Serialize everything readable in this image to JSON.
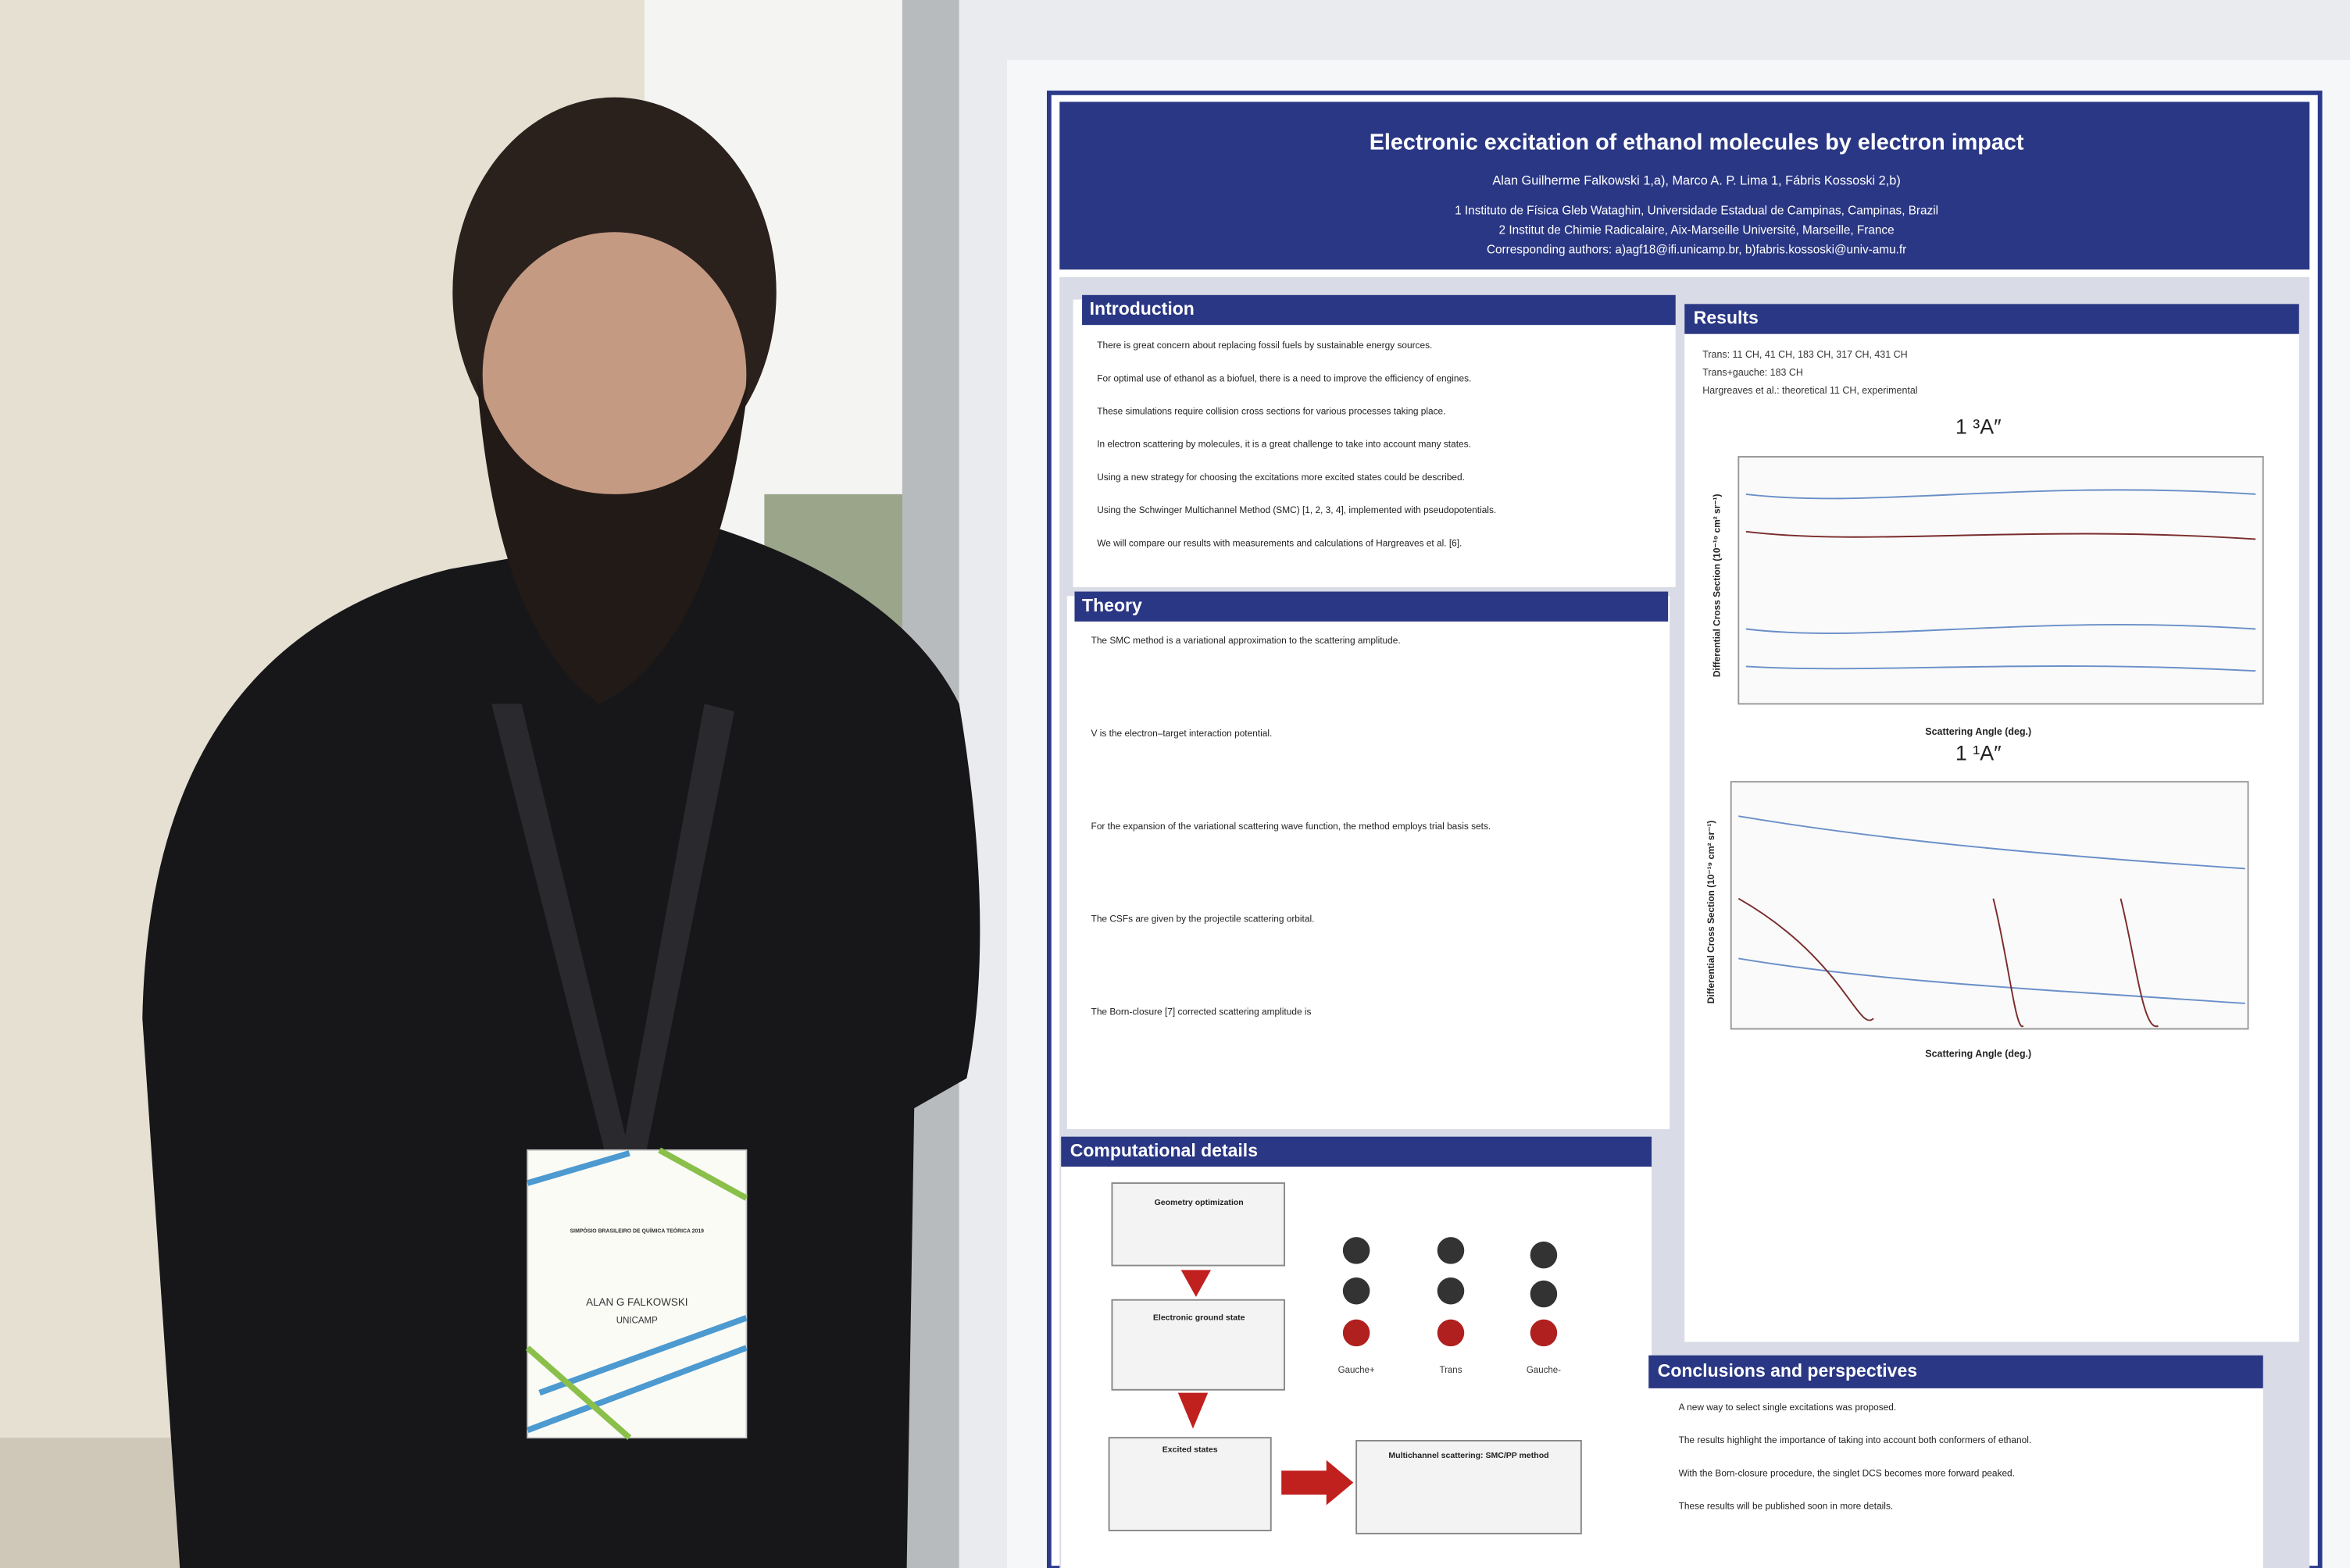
{
  "poster": {
    "title": "Electronic excitation of ethanol molecules by electron impact",
    "authors": "Alan Guilherme Falkowski 1,a), Marco A. P. Lima 1, Fábris Kossoski 2,b)",
    "affiliations": [
      "1 Instituto de Física Gleb Wataghin, Universidade Estadual de Campinas, Campinas, Brazil",
      "2 Institut de Chimie Radicalaire, Aix-Marseille Université, Marseille, France",
      "Corresponding authors: a)agf18@ifi.unicamp.br, b)fabris.kossoski@univ-amu.fr"
    ],
    "sections": {
      "introduction": "Introduction",
      "theory": "Theory",
      "computational": "Computational details",
      "results": "Results",
      "conclusions": "Conclusions and perspectives"
    },
    "intro_bullets": [
      "There is great concern about replacing fossil fuels by sustainable energy sources.",
      "For optimal use of ethanol as a biofuel, there is a need to improve the efficiency of engines.",
      "These simulations require collision cross sections for various processes taking place.",
      "In electron scattering by molecules, it is a great challenge to take into account many states.",
      "Using a new strategy for choosing the excitations more excited states could be described.",
      "Using the Schwinger Multichannel Method (SMC) [1, 2, 3, 4], implemented with pseudopotentials.",
      "We will compare our results with measurements and calculations of Hargreaves et al. [6]."
    ],
    "theory_bullets": [
      "The SMC method is a variational approximation to the scattering amplitude.",
      "V is the electron–target interaction potential.",
      "For the expansion of the variational scattering wave function, the method employs trial basis sets.",
      "The CSFs are given by the projectile scattering orbital.",
      "The Born-closure [7] corrected scattering amplitude is"
    ],
    "results_legend": [
      "Trans:  11 CH,  41 CH,  183 CH,  317 CH,  431 CH",
      "Trans+gauche:  183 CH",
      "Hargreaves et al.:  theoretical 11 CH,  experimental"
    ],
    "plots": [
      {
        "title": "1 ³A″",
        "y_label": "Differential Cross Section (10⁻¹⁹ cm² sr⁻¹)",
        "x_label": "Scattering Angle (deg.)"
      },
      {
        "title": "1 ¹A″",
        "y_label": "Differential Cross Section (10⁻¹⁹ cm² sr⁻¹)",
        "x_label": "Scattering Angle (deg.)"
      }
    ],
    "molecules": [
      "Gauche+",
      "Trans",
      "Gauche-"
    ],
    "flow": [
      "Geometry optimization",
      "Electronic ground state",
      "Excited states",
      "Multichannel scattering: SMC/PP method"
    ],
    "conclusions_bullets": [
      "A new way to select single excitations was proposed.",
      "The results highlight the importance of taking into account both conformers of ethanol.",
      "With the Born-closure procedure, the singlet DCS becomes more forward peaked.",
      "These results will be published soon in more details."
    ]
  },
  "badge": {
    "event": "SIMPÓSIO BRASILEIRO DE QUÍMICA TEÓRICA 2019",
    "name": "ALAN G FALKOWSKI",
    "institution": "UNICAMP"
  }
}
